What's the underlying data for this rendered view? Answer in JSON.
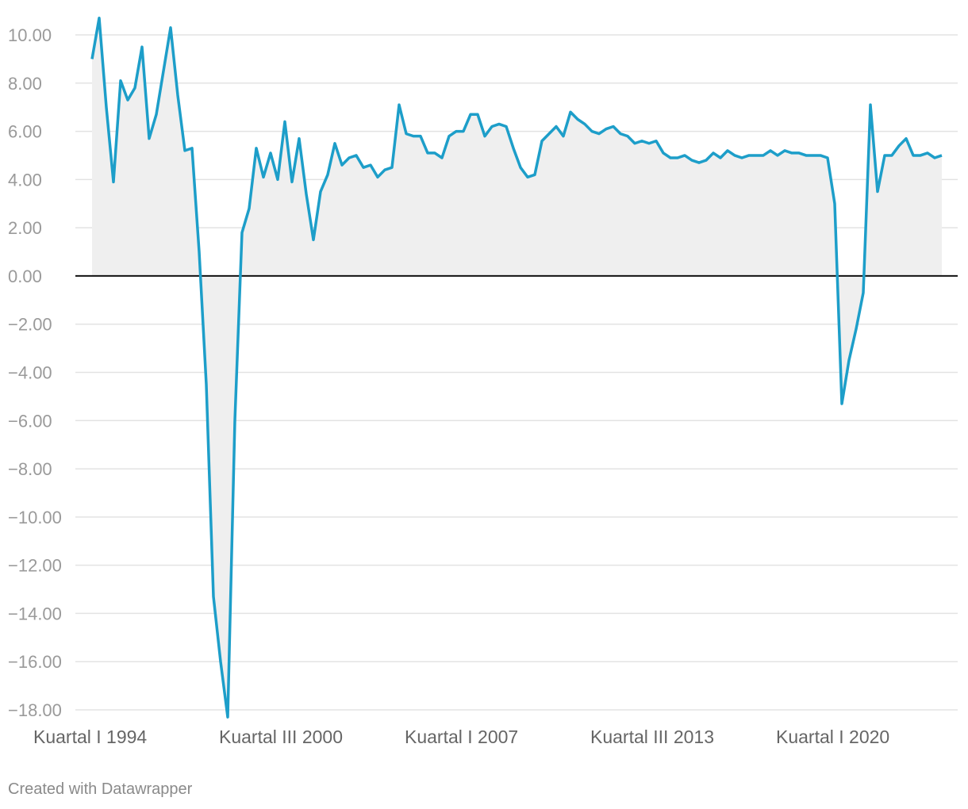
{
  "chart_data": {
    "type": "area",
    "title": "",
    "xlabel": "",
    "ylabel": "",
    "ylim": [
      -18,
      10
    ],
    "yticks": [
      10,
      8,
      6,
      4,
      2,
      0,
      -2,
      -4,
      -6,
      -8,
      -10,
      -12,
      -14,
      -16,
      -18
    ],
    "ytick_labels": [
      "10.00",
      "8.00",
      "6.00",
      "4.00",
      "2.00",
      "0.00",
      "−2.00",
      "−4.00",
      "−6.00",
      "−8.00",
      "−10.00",
      "−12.00",
      "−14.00",
      "−16.00",
      "−18.00"
    ],
    "x_tick_labels": [
      {
        "label": "Kuartal I 1994",
        "index": 0
      },
      {
        "label": "Kuartal III 2000",
        "index": 26
      },
      {
        "label": "Kuartal I 2007",
        "index": 52
      },
      {
        "label": "Kuartal III 2013",
        "index": 78
      },
      {
        "label": "Kuartal I 2020",
        "index": 104
      }
    ],
    "grid": true,
    "series": [
      {
        "color": "#1d9ec9",
        "fill": "#efefef",
        "values": [
          9.0,
          10.7,
          7.0,
          3.9,
          8.1,
          7.3,
          7.8,
          9.5,
          5.7,
          6.7,
          8.5,
          10.3,
          7.5,
          5.2,
          5.3,
          1.0,
          -4.5,
          -13.3,
          -16.0,
          -18.3,
          -6.0,
          1.8,
          2.8,
          5.3,
          4.1,
          5.1,
          4.0,
          6.4,
          3.9,
          5.7,
          3.4,
          1.5,
          3.5,
          4.2,
          5.5,
          4.6,
          4.9,
          5.0,
          4.5,
          4.6,
          4.1,
          4.4,
          4.5,
          7.1,
          5.9,
          5.8,
          5.8,
          5.1,
          5.1,
          4.9,
          5.8,
          6.0,
          6.0,
          6.7,
          6.7,
          5.8,
          6.2,
          6.3,
          6.2,
          5.3,
          4.5,
          4.1,
          4.2,
          5.6,
          5.9,
          6.2,
          5.8,
          6.8,
          6.5,
          6.3,
          6.0,
          5.9,
          6.1,
          6.2,
          5.9,
          5.8,
          5.5,
          5.6,
          5.5,
          5.6,
          5.1,
          4.9,
          4.9,
          5.0,
          4.8,
          4.7,
          4.8,
          5.1,
          4.9,
          5.2,
          5.0,
          4.9,
          5.0,
          5.0,
          5.0,
          5.2,
          5.0,
          5.2,
          5.1,
          5.1,
          5.0,
          5.0,
          5.0,
          4.9,
          3.0,
          -5.3,
          -3.5,
          -2.2,
          -0.7,
          7.1,
          3.5,
          5.0,
          5.0,
          5.4,
          5.7,
          5.0,
          5.0,
          5.1,
          4.9,
          5.0
        ]
      }
    ]
  },
  "footer": {
    "credit": "Created with Datawrapper"
  }
}
